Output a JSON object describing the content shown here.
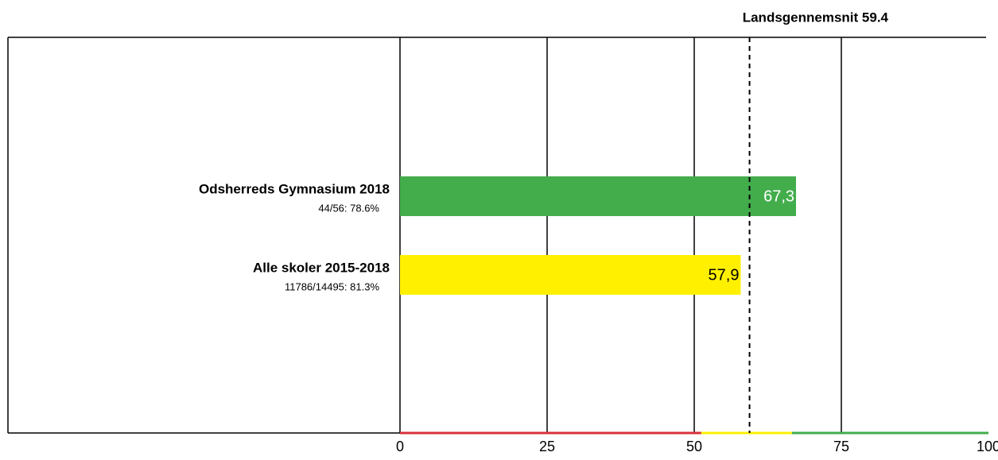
{
  "chart_data": {
    "type": "hbar",
    "annotation": "Landsgennemsnit 59.4",
    "reference_value": 59.4,
    "categories": [
      "Odsherreds Gymnasium 2018",
      "Alle skoler 2015-2018"
    ],
    "sublabels": [
      "44/56: 78.6%",
      "11786/14495: 81.3%"
    ],
    "values": [
      67.3,
      57.9
    ],
    "value_labels": [
      "67,3",
      "57,9"
    ],
    "colors": [
      "#43ad4c",
      "#fff000"
    ],
    "value_label_colors": [
      "#ffffff",
      "#000000"
    ],
    "xlim": [
      0,
      100
    ],
    "xticks": [
      0,
      25,
      50,
      75,
      100
    ],
    "grid": true,
    "axis_bands": [
      {
        "from": 0,
        "to": 51.2,
        "color": "#d8313a"
      },
      {
        "from": 51.2,
        "to": 66.6,
        "color": "#fff000"
      },
      {
        "from": 66.6,
        "to": 100,
        "color": "#43ad4c"
      }
    ]
  }
}
